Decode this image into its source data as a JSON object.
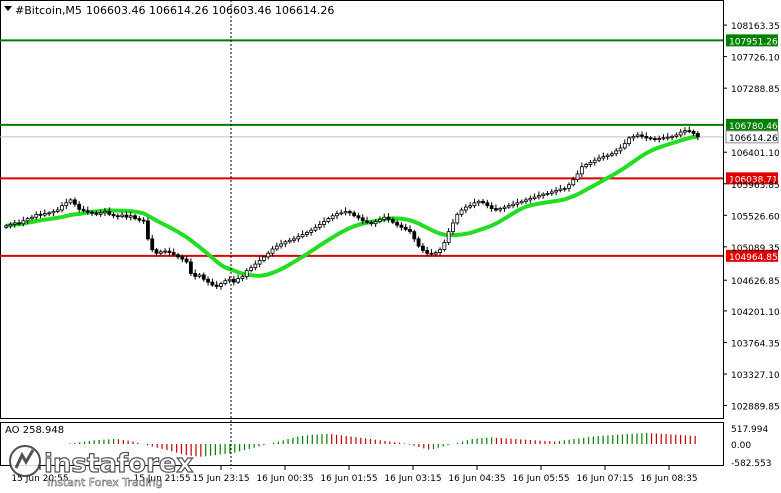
{
  "header": {
    "symbol": "#Bitcoin,M5",
    "ohlc": "106603.46 106614.26 106603.46 106614.26"
  },
  "colors": {
    "bull": "#000000",
    "bear": "#000000",
    "ma": "#22dd22",
    "resistance": "#008000",
    "support": "#e00000",
    "ao_up": "#008000",
    "ao_down": "#c00000",
    "price_tag": "#a0a0a0"
  },
  "chart_data": [
    {
      "type": "candlestick",
      "y_ticks": [
        "108163.35",
        "107726.10",
        "107288.85",
        "106401.10",
        "105963.85",
        "105526.60",
        "105089.35",
        "104626.85",
        "104201.10",
        "103764.35",
        "103327.10",
        "102889.85"
      ],
      "x_ticks": [
        "15 Jun 20:55",
        "15 Jun 21:55",
        "15 Jun 23:15",
        "16 Jun 00:35",
        "16 Jun 01:55",
        "16 Jun 03:15",
        "16 Jun 04:35",
        "16 Jun 05:55",
        "16 Jun 07:15",
        "16 Jun 08:35"
      ],
      "horizontal_levels": [
        {
          "label": "107951.26",
          "value": 107951.26,
          "kind": "resistance"
        },
        {
          "label": "106780.46",
          "value": 106780.46,
          "kind": "resistance"
        },
        {
          "label": "106038.71",
          "value": 106038.71,
          "kind": "support"
        },
        {
          "label": "104964.85",
          "value": 104964.85,
          "kind": "support"
        }
      ],
      "current_price": "106614.26",
      "ylim": [
        102800,
        108400
      ],
      "close": [
        105380,
        105400,
        105420,
        105410,
        105450,
        105480,
        105500,
        105540,
        105530,
        105550,
        105560,
        105580,
        105600,
        105660,
        105700,
        105740,
        105680,
        105610,
        105590,
        105570,
        105560,
        105540,
        105560,
        105580,
        105540,
        105520,
        105510,
        105530,
        105500,
        105520,
        105480,
        105460,
        105450,
        105200,
        105050,
        105000,
        105020,
        105030,
        105010,
        104980,
        104950,
        104920,
        104880,
        104720,
        104680,
        104700,
        104640,
        104600,
        104560,
        104540,
        104580,
        104620,
        104640,
        104600,
        104650,
        104680,
        104760,
        104800,
        104850,
        104900,
        104950,
        105000,
        105060,
        105100,
        105130,
        105160,
        105180,
        105200,
        105230,
        105260,
        105290,
        105320,
        105360,
        105400,
        105440,
        105480,
        105520,
        105550,
        105560,
        105580,
        105560,
        105520,
        105490,
        105450,
        105430,
        105410,
        105440,
        105470,
        105500,
        105470,
        105430,
        105390,
        105360,
        105330,
        105300,
        105200,
        105100,
        105040,
        105000,
        104990,
        105010,
        105050,
        105150,
        105300,
        105420,
        105540,
        105600,
        105640,
        105660,
        105700,
        105720,
        105700,
        105660,
        105620,
        105600,
        105620,
        105640,
        105660,
        105680,
        105700,
        105720,
        105740,
        105760,
        105780,
        105800,
        105820,
        105830,
        105850,
        105870,
        105890,
        105900,
        105950,
        106020,
        106100,
        106200,
        106230,
        106260,
        106290,
        106320,
        106340,
        106360,
        106380,
        106420,
        106460,
        106520,
        106600,
        106620,
        106640,
        106620,
        106600,
        106590,
        106580,
        106590,
        106600,
        106610,
        106620,
        106640,
        106680,
        106700,
        106690,
        106660,
        106614
      ]
    },
    {
      "type": "bar",
      "name": "AO",
      "label": "AO 258.948",
      "y_ticks": [
        "517.994",
        "0.00",
        "-582.553"
      ],
      "ylim": [
        -582.553,
        517.994
      ],
      "values": [
        20,
        40,
        60,
        80,
        100,
        120,
        130,
        140,
        150,
        160,
        150,
        130,
        110,
        80,
        40,
        0,
        -40,
        -80,
        -120,
        -160,
        -200,
        -240,
        -280,
        -320,
        -360,
        -380,
        -400,
        -410,
        -400,
        -380,
        -360,
        -340,
        -320,
        -300,
        -280,
        -240,
        -200,
        -160,
        -120,
        -80,
        -40,
        0,
        40,
        80,
        120,
        160,
        200,
        240,
        260,
        280,
        300,
        310,
        320,
        330,
        320,
        300,
        280,
        260,
        240,
        220,
        200,
        180,
        160,
        140,
        120,
        100,
        80,
        60,
        40,
        20,
        -20,
        -60,
        -100,
        -140,
        -180,
        -160,
        -120,
        -80,
        -40,
        0,
        40,
        80,
        120,
        160,
        180,
        190,
        200,
        210,
        200,
        190,
        180,
        170,
        160,
        150,
        140,
        130,
        120,
        110,
        100,
        90,
        80,
        100,
        120,
        140,
        160,
        180,
        200,
        220,
        240,
        260,
        270,
        280,
        290,
        300,
        310,
        320,
        330,
        340,
        350,
        360,
        350,
        340,
        330,
        320,
        310,
        300,
        290,
        280,
        270,
        260
      ]
    }
  ],
  "watermark": {
    "brand": "instaforex",
    "tagline": "Instant Forex Trading"
  }
}
